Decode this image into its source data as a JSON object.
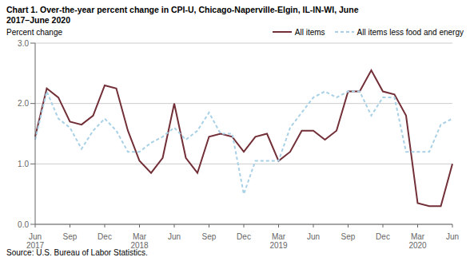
{
  "chart_data": {
    "type": "line",
    "title": "Chart 1. Over-the-year percent change in CPI-U, Chicago-Naperville-Elgin, IL-IN-WI, June\n2017–June 2020",
    "y_label": "Percent change",
    "annotations": [
      "Source: U.S. Bureau of Labor Statistics."
    ],
    "categories": [
      "Jun\n2017",
      null,
      null,
      "Sep",
      null,
      null,
      "Dec",
      null,
      null,
      "Mar\n2018",
      null,
      null,
      "Jun",
      null,
      null,
      "Sep",
      null,
      null,
      "Dec",
      null,
      null,
      "Mar\n2019",
      null,
      null,
      "Jun",
      null,
      null,
      "Sep",
      null,
      null,
      "Dec",
      null,
      null,
      "Mar\n2020",
      null,
      null,
      "Jun"
    ],
    "series": [
      {
        "name": "All items",
        "color": "#722f37",
        "line_style": "solid",
        "values": [
          1.45,
          2.25,
          2.1,
          1.7,
          1.65,
          1.8,
          2.3,
          2.25,
          1.55,
          1.05,
          0.85,
          1.1,
          2.0,
          1.1,
          0.85,
          1.45,
          1.5,
          1.45,
          1.2,
          1.45,
          1.5,
          1.05,
          1.2,
          1.55,
          1.55,
          1.4,
          1.55,
          2.2,
          2.2,
          2.55,
          2.2,
          2.15,
          1.8,
          0.35,
          0.3,
          0.3,
          1.0
        ]
      },
      {
        "name": "All items less food and energy",
        "color": "#a8d0e6",
        "line_style": "dashed",
        "values": [
          1.4,
          2.2,
          1.75,
          1.6,
          1.25,
          1.55,
          1.75,
          1.55,
          1.2,
          1.2,
          1.35,
          1.45,
          1.6,
          1.4,
          1.55,
          1.85,
          1.5,
          1.5,
          0.5,
          1.05,
          1.05,
          1.05,
          1.6,
          1.85,
          2.1,
          2.2,
          2.1,
          2.2,
          2.2,
          1.8,
          2.1,
          2.1,
          1.2,
          1.2,
          1.2,
          1.65,
          1.75
        ]
      }
    ],
    "ylim": [
      0,
      3
    ],
    "yticks": [
      {
        "value": 0,
        "label": "0.0"
      },
      {
        "value": 1,
        "label": "1.0"
      },
      {
        "value": 2,
        "label": "2.0"
      },
      {
        "value": 3,
        "label": "3.0"
      }
    ],
    "grid": true,
    "legend": "upper right"
  }
}
